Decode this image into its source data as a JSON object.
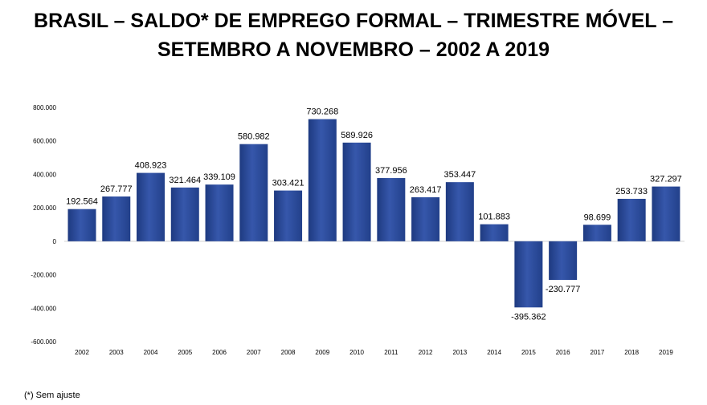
{
  "title_lines": [
    "BRASIL – SALDO* DE EMPREGO FORMAL – TRIMESTRE MÓVEL –",
    "SETEMBRO A NOVEMBRO – 2002 A 2019"
  ],
  "footnote": "(*) Sem ajuste",
  "chart_data": {
    "type": "bar",
    "title": "BRASIL – SALDO* DE EMPREGO FORMAL – TRIMESTRE MÓVEL – SETEMBRO A NOVEMBRO – 2002 A 2019",
    "xlabel": "",
    "ylabel": "",
    "categories": [
      "2002",
      "2003",
      "2004",
      "2005",
      "2006",
      "2007",
      "2008",
      "2009",
      "2010",
      "2011",
      "2012",
      "2013",
      "2014",
      "2015",
      "2016",
      "2017",
      "2018",
      "2019"
    ],
    "values": [
      192564,
      267777,
      408923,
      321464,
      339109,
      580982,
      303421,
      730268,
      589926,
      377956,
      263417,
      353447,
      101883,
      -395362,
      -230777,
      98699,
      253733,
      327297
    ],
    "data_labels": [
      "192.564",
      "267.777",
      "408.923",
      "321.464",
      "339.109",
      "580.982",
      "303.421",
      "730.268",
      "589.926",
      "377.956",
      "263.417",
      "353.447",
      "101.883",
      "-395.362",
      "-230.777",
      "98.699",
      "253.733",
      "327.297"
    ],
    "ylim": [
      -600000,
      800000
    ],
    "yticks": [
      800000,
      600000,
      400000,
      200000,
      0,
      -200000,
      -400000,
      -600000
    ],
    "ytick_labels": [
      "800.000",
      "600.000",
      "400.000",
      "200.000",
      "0",
      "-200.000",
      "-400.000",
      "-600.000"
    ],
    "grid": false,
    "legend": "none",
    "bar_color": "#2e4f9e"
  }
}
